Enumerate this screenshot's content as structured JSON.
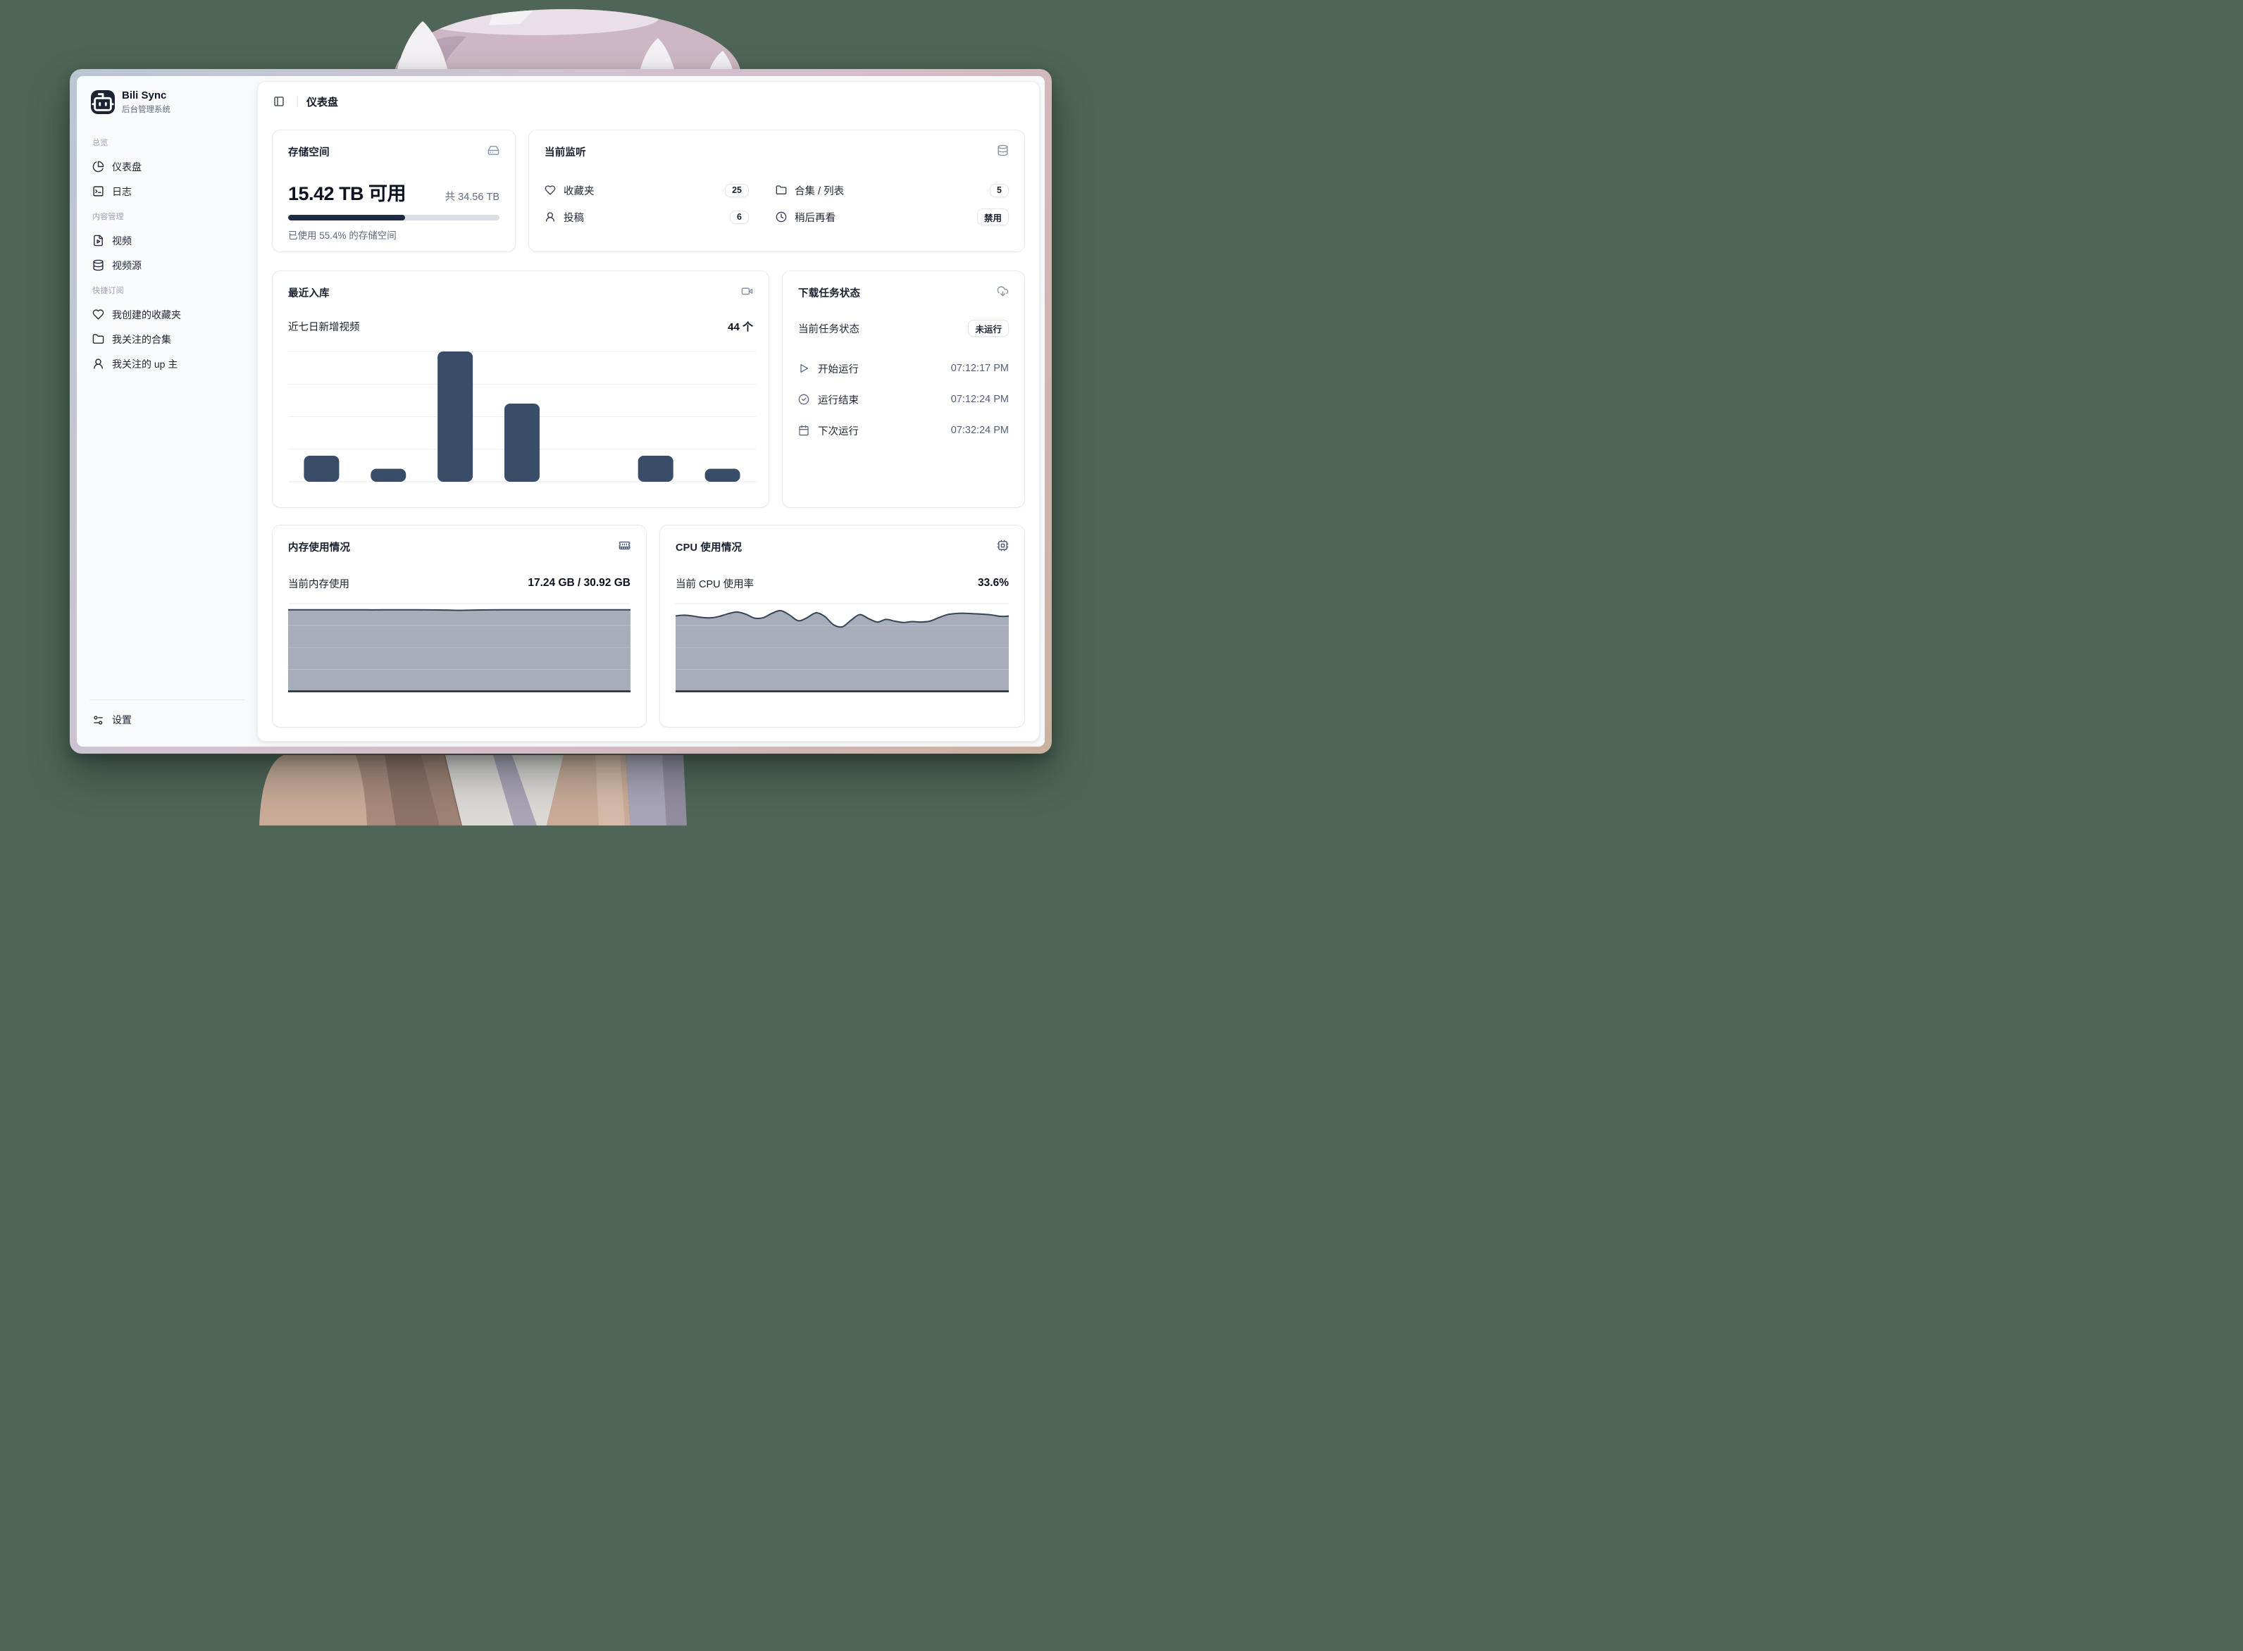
{
  "app": {
    "background_color": "#4e6557"
  },
  "sidebar": {
    "brand": {
      "title": "Bili Sync",
      "subtitle": "后台管理系统",
      "logo_icon": "bot"
    },
    "sections": [
      {
        "label": "总览",
        "items": [
          {
            "icon": "chart-pie",
            "label": "仪表盘"
          },
          {
            "icon": "square-terminal",
            "label": "日志"
          }
        ]
      },
      {
        "label": "内容管理",
        "items": [
          {
            "icon": "file-video",
            "label": "视频"
          },
          {
            "icon": "database",
            "label": "视频源"
          }
        ]
      },
      {
        "label": "快捷订阅",
        "items": [
          {
            "icon": "heart",
            "label": "我创建的收藏夹"
          },
          {
            "icon": "folder",
            "label": "我关注的合集"
          },
          {
            "icon": "user",
            "label": "我关注的 up 主"
          }
        ]
      }
    ],
    "footer_item": {
      "icon": "settings-sliders",
      "label": "设置"
    }
  },
  "header": {
    "toggle_icon": "panel-left",
    "title": "仪表盘"
  },
  "cards": {
    "storage": {
      "title": "存储空间",
      "icon": "hard-drive",
      "available": "15.42 TB 可用",
      "total": "共 34.56 TB",
      "used_percent": 55.4,
      "caption": "已使用 55.4% 的存储空间"
    },
    "monitoring": {
      "title": "当前监听",
      "icon": "database",
      "items": [
        {
          "icon": "heart",
          "label": "收藏夹",
          "value": "25"
        },
        {
          "icon": "folder",
          "label": "合集 / 列表",
          "value": "5"
        },
        {
          "icon": "user",
          "label": "投稿",
          "value": "6"
        },
        {
          "icon": "clock",
          "label": "稍后再看",
          "value": "禁用"
        }
      ]
    },
    "recent": {
      "title": "最近入库",
      "icon": "video",
      "subtitle": "近七日新增视频",
      "count": "44 个"
    },
    "task": {
      "title": "下载任务状态",
      "icon": "cloud-download",
      "status_label": "当前任务状态",
      "status_value": "未运行",
      "rows": [
        {
          "icon": "play",
          "label": "开始运行",
          "value": "07:12:17 PM"
        },
        {
          "icon": "circle-check",
          "label": "运行结束",
          "value": "07:12:24 PM"
        },
        {
          "icon": "calendar",
          "label": "下次运行",
          "value": "07:32:24 PM"
        }
      ]
    },
    "memory": {
      "title": "内存使用情况",
      "icon": "memory-stick",
      "label": "当前内存使用",
      "value": "17.24 GB / 30.92 GB"
    },
    "cpu": {
      "title": "CPU 使用情况",
      "icon": "cpu",
      "label": "当前 CPU 使用率",
      "value": "33.6%"
    }
  },
  "chart_data": [
    {
      "type": "bar",
      "title": "最近入库 - 近七日新增视频",
      "values": [
        4,
        2,
        20,
        12,
        0,
        4,
        2
      ],
      "total": 44,
      "ylim": [
        0,
        20
      ],
      "gridline_step": 5,
      "grid": true,
      "legend": false,
      "bar_color": "#3a4d68"
    },
    {
      "type": "area",
      "title": "内存使用历史（占绘图区高度比例）",
      "values": [
        0.93,
        0.93,
        0.93,
        0.93,
        0.93,
        0.93,
        0.929,
        0.93,
        0.93,
        0.93,
        0.929,
        0.927,
        0.924,
        0.927,
        0.929,
        0.93,
        0.93,
        0.93,
        0.93,
        0.93,
        0.93,
        0.93,
        0.93,
        0.93,
        0.93
      ],
      "fill_color": "#a8aeb9",
      "line_color": "#364458",
      "grid": true,
      "legend": false
    },
    {
      "type": "area",
      "title": "CPU 使用历史（占绘图区高度比例）",
      "values": [
        0.86,
        0.868,
        0.858,
        0.842,
        0.838,
        0.855,
        0.885,
        0.905,
        0.88,
        0.835,
        0.84,
        0.89,
        0.92,
        0.87,
        0.805,
        0.84,
        0.895,
        0.855,
        0.76,
        0.735,
        0.81,
        0.875,
        0.83,
        0.79,
        0.82,
        0.8,
        0.785,
        0.795,
        0.79,
        0.8,
        0.84,
        0.875,
        0.888,
        0.89,
        0.885,
        0.88,
        0.872,
        0.855,
        0.858
      ],
      "fill_color": "#a8aeb9",
      "line_color": "#364458",
      "grid": true,
      "legend": false
    }
  ],
  "colors": {
    "progress_fill": "#1d2b42",
    "bar": "#3a4d68",
    "area_fill": "#a8aeb9",
    "area_line": "#364458",
    "baseline": "#20262f",
    "gridline": "#eceef2"
  }
}
